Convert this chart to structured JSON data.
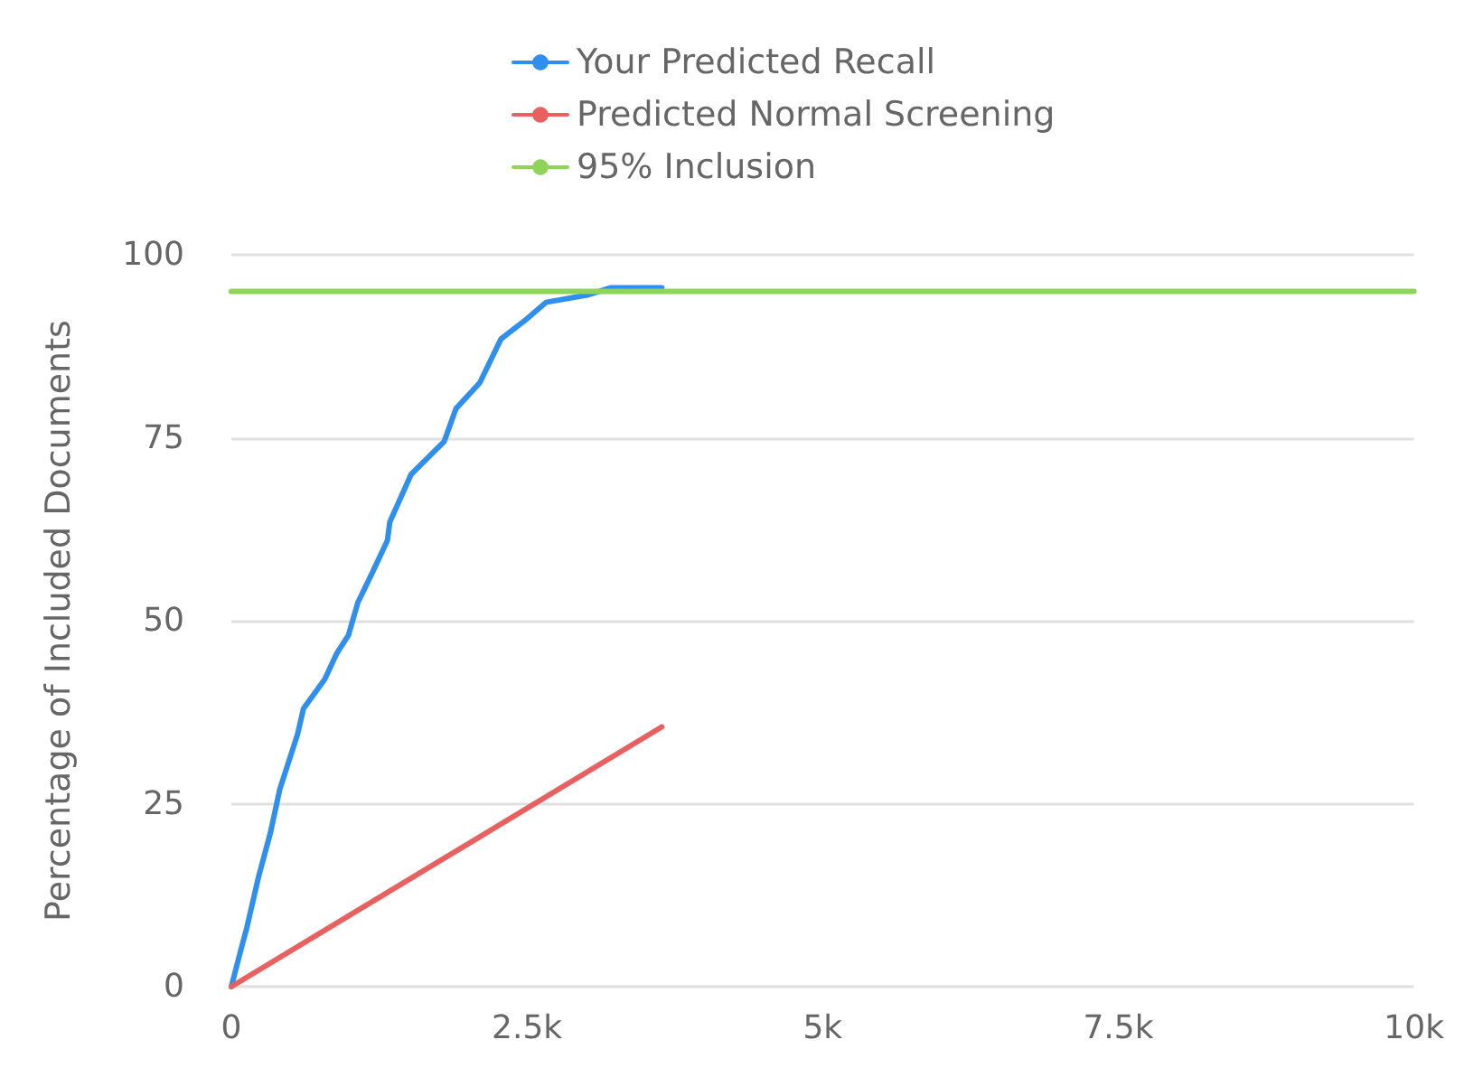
{
  "chart_data": {
    "type": "line",
    "ylabel": "Percentage of Included Documents",
    "xlim": [
      0,
      10000
    ],
    "xticks": [
      0,
      {
        "value": 2500,
        "label": "2.5k"
      },
      {
        "value": 5000,
        "label": "5k"
      },
      {
        "value": 7500,
        "label": "7.5k"
      },
      {
        "value": 10000,
        "label": "10k"
      }
    ],
    "ylim": [
      0,
      100
    ],
    "yticks": [
      0,
      25,
      50,
      75,
      100
    ],
    "grid": "y",
    "legend": "top",
    "line_style": "solid",
    "series": [
      {
        "name": "Your Predicted Recall",
        "color": "#2f8fee",
        "x": [
          0,
          80,
          130,
          230,
          330,
          410,
          510,
          560,
          610,
          790,
          890,
          990,
          1070,
          1190,
          1320,
          1340,
          1520,
          1800,
          1900,
          2100,
          2280,
          2480,
          2660,
          3010,
          3210,
          3640
        ],
        "values": [
          0,
          5,
          8,
          15,
          21,
          27,
          32,
          34.5,
          38,
          42,
          45.5,
          48,
          52.5,
          56.5,
          61,
          63.5,
          70,
          74.5,
          79,
          82.5,
          88.5,
          91,
          93.5,
          94.5,
          95.5,
          95.5
        ]
      },
      {
        "name": "Predicted Normal Screening",
        "color": "#e8605f",
        "x": [
          0,
          3640
        ],
        "values": [
          0,
          35.5
        ]
      },
      {
        "name": "95% Inclusion",
        "color": "#8fd45a",
        "x": [
          0,
          10000
        ],
        "values": [
          95,
          95
        ]
      }
    ]
  }
}
